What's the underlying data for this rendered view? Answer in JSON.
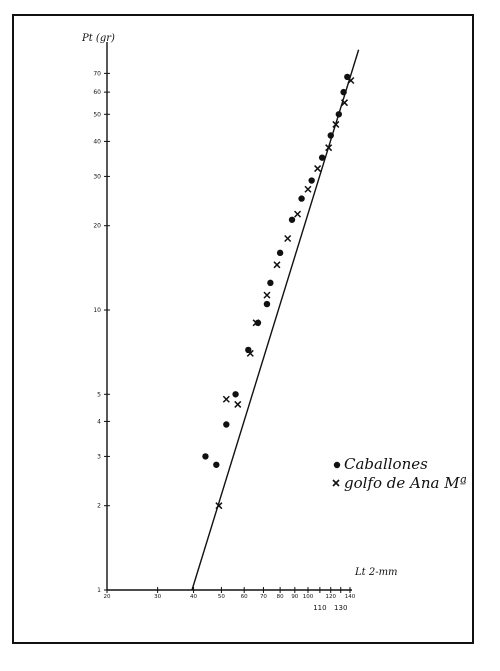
{
  "chart_data": {
    "type": "scatter",
    "title": "",
    "xlabel": "Lt 2-mm",
    "ylabel": "Pt (gr)",
    "x_scale": "log",
    "y_scale": "log",
    "xlim": [
      20,
      140
    ],
    "ylim": [
      1,
      80
    ],
    "x_ticks": [
      {
        "value": 20,
        "label": "20"
      },
      {
        "value": 30,
        "label": "30"
      },
      {
        "value": 40,
        "label": "40"
      },
      {
        "value": 50,
        "label": "50"
      },
      {
        "value": 60,
        "label": "60"
      },
      {
        "value": 70,
        "label": "70"
      },
      {
        "value": 80,
        "label": "80"
      },
      {
        "value": 90,
        "label": "90"
      },
      {
        "value": 100,
        "label": "100"
      },
      {
        "value": 110,
        "label": "110"
      },
      {
        "value": 120,
        "label": "120"
      },
      {
        "value": 130,
        "label": "130"
      },
      {
        "value": 140,
        "label": "140"
      }
    ],
    "y_ticks": [
      {
        "value": 1,
        "label": "1"
      },
      {
        "value": 2,
        "label": "2"
      },
      {
        "value": 3,
        "label": "3"
      },
      {
        "value": 4,
        "label": "4"
      },
      {
        "value": 5,
        "label": "5"
      },
      {
        "value": 10,
        "label": "10"
      },
      {
        "value": 20,
        "label": "20"
      },
      {
        "value": 30,
        "label": "30"
      },
      {
        "value": 40,
        "label": "40"
      },
      {
        "value": 50,
        "label": "50"
      },
      {
        "value": 60,
        "label": "60"
      },
      {
        "value": 70,
        "label": "70"
      }
    ],
    "series": [
      {
        "name": "Caballones",
        "marker": "dot",
        "points": [
          [
            44,
            3.0
          ],
          [
            48,
            2.8
          ],
          [
            52,
            3.9
          ],
          [
            56,
            5.0
          ],
          [
            62,
            7.2
          ],
          [
            67,
            9.0
          ],
          [
            72,
            10.5
          ],
          [
            74,
            12.5
          ],
          [
            80,
            16
          ],
          [
            88,
            21
          ],
          [
            95,
            25
          ],
          [
            103,
            29
          ],
          [
            112,
            35
          ],
          [
            120,
            42
          ],
          [
            128,
            50
          ],
          [
            133,
            60
          ],
          [
            137,
            68
          ]
        ]
      },
      {
        "name": "golfo de Ana Mª",
        "marker": "cross",
        "points": [
          [
            49,
            2.0
          ],
          [
            52,
            4.8
          ],
          [
            57,
            4.6
          ],
          [
            63,
            7.0
          ],
          [
            66,
            9.0
          ],
          [
            72,
            11.3
          ],
          [
            78,
            14.5
          ],
          [
            85,
            18
          ],
          [
            92,
            22
          ],
          [
            100,
            27
          ],
          [
            108,
            32
          ],
          [
            118,
            38
          ],
          [
            125,
            46
          ],
          [
            134,
            55
          ],
          [
            141,
            66
          ]
        ]
      }
    ],
    "fit_line": {
      "x": [
        39.5,
        150
      ],
      "y": [
        1,
        85
      ]
    },
    "legend": {
      "placement": "right-middle"
    },
    "grid": false
  }
}
